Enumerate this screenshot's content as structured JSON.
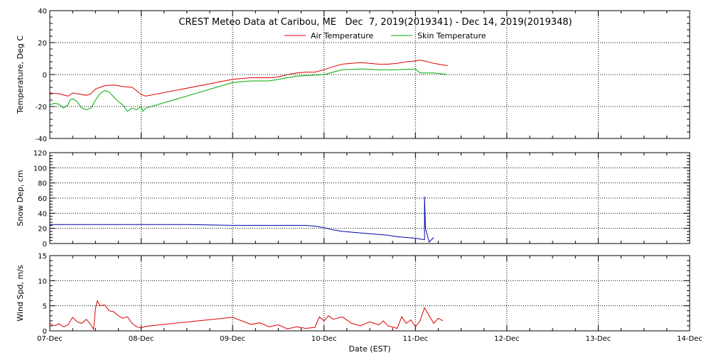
{
  "chart_data": {
    "type": "line",
    "title": "CREST Meteo Data at Caribou, ME   Dec  7, 2019(2019341) - Dec 14, 2019(2019348)",
    "xlabel": "Date (EST)",
    "x_ticks": [
      "07-Dec",
      "08-Dec",
      "09-Dec",
      "10-Dec",
      "11-Dec",
      "12-Dec",
      "13-Dec",
      "14-Dec"
    ],
    "xlim": [
      0,
      7
    ],
    "grid": true,
    "panels": [
      {
        "ylabel": "Temperature, Deg C",
        "ylim": [
          -40,
          40
        ],
        "yticks": [
          -40,
          -20,
          0,
          20,
          40
        ],
        "legend": "top-center",
        "series": [
          {
            "name": "Air Temperature",
            "color": "#dd0000",
            "points": [
              [
                0,
                -11.5
              ],
              [
                0.1,
                -12
              ],
              [
                0.2,
                -13.5
              ],
              [
                0.25,
                -11.5
              ],
              [
                0.3,
                -12
              ],
              [
                0.4,
                -13
              ],
              [
                0.45,
                -12
              ],
              [
                0.5,
                -9
              ],
              [
                0.55,
                -8
              ],
              [
                0.6,
                -7
              ],
              [
                0.7,
                -6.5
              ],
              [
                0.8,
                -7.5
              ],
              [
                0.9,
                -8
              ],
              [
                0.95,
                -10
              ],
              [
                1.0,
                -12.5
              ],
              [
                1.05,
                -13.5
              ],
              [
                2.0,
                -3
              ],
              [
                2.2,
                -2
              ],
              [
                2.4,
                -2
              ],
              [
                2.5,
                -1.5
              ],
              [
                2.6,
                0
              ],
              [
                2.7,
                1
              ],
              [
                2.8,
                1.5
              ],
              [
                2.9,
                1.5
              ],
              [
                3.0,
                3
              ],
              [
                3.1,
                5
              ],
              [
                3.2,
                6.5
              ],
              [
                3.3,
                7
              ],
              [
                3.4,
                7.5
              ],
              [
                3.5,
                7
              ],
              [
                3.6,
                6.5
              ],
              [
                3.7,
                6.5
              ],
              [
                3.8,
                7
              ],
              [
                3.85,
                7.5
              ],
              [
                3.9,
                8
              ],
              [
                4.0,
                8.5
              ],
              [
                4.05,
                9
              ],
              [
                4.1,
                8.5
              ],
              [
                4.2,
                7
              ],
              [
                4.3,
                6
              ],
              [
                4.35,
                5.5
              ]
            ]
          },
          {
            "name": "Skin Temperature",
            "color": "#00aa00",
            "points": [
              [
                0,
                -19
              ],
              [
                0.05,
                -18
              ],
              [
                0.1,
                -18.5
              ],
              [
                0.15,
                -21
              ],
              [
                0.2,
                -19
              ],
              [
                0.22,
                -16
              ],
              [
                0.25,
                -15
              ],
              [
                0.3,
                -17
              ],
              [
                0.35,
                -21
              ],
              [
                0.4,
                -22
              ],
              [
                0.45,
                -21
              ],
              [
                0.5,
                -16
              ],
              [
                0.55,
                -12
              ],
              [
                0.6,
                -10
              ],
              [
                0.65,
                -11
              ],
              [
                0.7,
                -14
              ],
              [
                0.75,
                -17
              ],
              [
                0.8,
                -19
              ],
              [
                0.85,
                -23
              ],
              [
                0.9,
                -21
              ],
              [
                0.95,
                -22
              ],
              [
                1.0,
                -20
              ],
              [
                1.02,
                -23
              ],
              [
                1.05,
                -21
              ],
              [
                2.0,
                -5
              ],
              [
                2.2,
                -4
              ],
              [
                2.4,
                -4
              ],
              [
                2.5,
                -3
              ],
              [
                2.7,
                -1
              ],
              [
                3.0,
                0
              ],
              [
                3.1,
                1.5
              ],
              [
                3.2,
                3
              ],
              [
                3.4,
                3.5
              ],
              [
                3.6,
                3
              ],
              [
                3.8,
                3
              ],
              [
                4.0,
                3.5
              ],
              [
                4.05,
                1
              ],
              [
                4.2,
                1
              ],
              [
                4.35,
                0
              ]
            ]
          }
        ]
      },
      {
        "ylabel": "Snow Dep, cm",
        "ylim": [
          0,
          120
        ],
        "yticks": [
          0,
          20,
          40,
          60,
          80,
          100,
          120
        ],
        "series": [
          {
            "name": "",
            "color": "#0000aa",
            "points": [
              [
                0,
                25
              ],
              [
                0.5,
                25
              ],
              [
                1.0,
                25
              ],
              [
                1.5,
                25
              ],
              [
                2.0,
                24
              ],
              [
                2.5,
                24
              ],
              [
                2.8,
                24
              ],
              [
                2.9,
                23
              ],
              [
                3.0,
                21
              ],
              [
                3.1,
                18
              ],
              [
                3.2,
                16
              ],
              [
                3.3,
                15
              ],
              [
                3.4,
                14
              ],
              [
                3.5,
                13
              ],
              [
                3.6,
                12
              ],
              [
                3.7,
                11
              ],
              [
                3.8,
                9
              ],
              [
                3.9,
                8
              ],
              [
                4.0,
                7
              ],
              [
                4.05,
                6
              ],
              [
                4.1,
                5
              ],
              [
                4.1,
                62
              ],
              [
                4.11,
                20
              ],
              [
                4.15,
                2
              ],
              [
                4.2,
                8
              ]
            ]
          }
        ]
      },
      {
        "ylabel": "Wind Spd, m/s",
        "ylim": [
          0,
          15
        ],
        "yticks": [
          0,
          5,
          10,
          15
        ],
        "series": [
          {
            "name": "",
            "color": "#dd0000",
            "points": [
              [
                0,
                1.5
              ],
              [
                0.05,
                1.0
              ],
              [
                0.1,
                1.4
              ],
              [
                0.15,
                0.8
              ],
              [
                0.2,
                1.2
              ],
              [
                0.25,
                2.7
              ],
              [
                0.3,
                1.8
              ],
              [
                0.35,
                1.5
              ],
              [
                0.4,
                2.3
              ],
              [
                0.45,
                1.2
              ],
              [
                0.48,
                0.3
              ],
              [
                0.5,
                4.5
              ],
              [
                0.52,
                6.0
              ],
              [
                0.55,
                5.0
              ],
              [
                0.6,
                5.2
              ],
              [
                0.65,
                4.0
              ],
              [
                0.7,
                3.8
              ],
              [
                0.75,
                3.0
              ],
              [
                0.8,
                2.5
              ],
              [
                0.85,
                2.8
              ],
              [
                0.9,
                1.5
              ],
              [
                0.95,
                0.8
              ],
              [
                1.0,
                0.6
              ],
              [
                1.05,
                0.9
              ],
              [
                2.0,
                2.7
              ],
              [
                2.1,
                2.0
              ],
              [
                2.2,
                1.3
              ],
              [
                2.3,
                1.6
              ],
              [
                2.4,
                0.8
              ],
              [
                2.5,
                1.2
              ],
              [
                2.6,
                0.4
              ],
              [
                2.7,
                0.8
              ],
              [
                2.8,
                0.5
              ],
              [
                2.9,
                0.7
              ],
              [
                2.95,
                2.8
              ],
              [
                3.0,
                2.0
              ],
              [
                3.05,
                3.0
              ],
              [
                3.1,
                2.3
              ],
              [
                3.2,
                2.8
              ],
              [
                3.3,
                1.5
              ],
              [
                3.4,
                1.0
              ],
              [
                3.5,
                1.8
              ],
              [
                3.6,
                1.2
              ],
              [
                3.65,
                2.0
              ],
              [
                3.7,
                1.0
              ],
              [
                3.8,
                0.5
              ],
              [
                3.85,
                2.8
              ],
              [
                3.9,
                1.5
              ],
              [
                3.95,
                2.2
              ],
              [
                4.0,
                0.8
              ],
              [
                4.05,
                2.0
              ],
              [
                4.1,
                4.6
              ],
              [
                4.15,
                3.0
              ],
              [
                4.2,
                1.5
              ],
              [
                4.25,
                2.5
              ],
              [
                4.3,
                2.0
              ]
            ]
          }
        ]
      }
    ]
  }
}
